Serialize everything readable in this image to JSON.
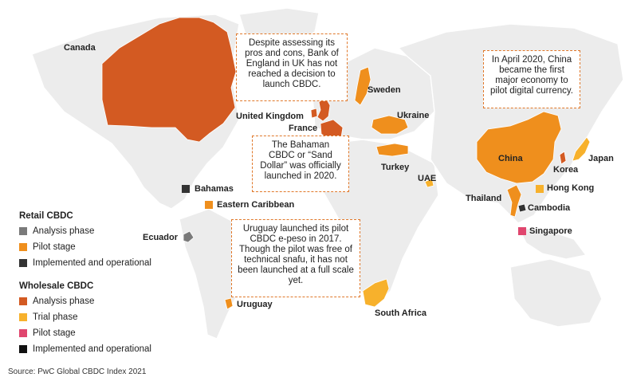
{
  "colors": {
    "retail_analysis": "#7a7a7a",
    "retail_pilot": "#ef8f1d",
    "retail_implemented": "#333333",
    "wholesale_analysis": "#d35a22",
    "wholesale_trial": "#f7b12c",
    "wholesale_pilot": "#e0466e",
    "wholesale_implemented": "#111111"
  },
  "labels": {
    "canada": "Canada",
    "united_kingdom": "United Kingdom",
    "france": "France",
    "sweden": "Sweden",
    "ukraine": "Ukraine",
    "turkey": "Turkey",
    "uae": "UAE",
    "china": "China",
    "korea": "Korea",
    "japan": "Japan",
    "hong_kong": "Hong Kong",
    "thailand": "Thailand",
    "cambodia": "Cambodia",
    "singapore": "Singapore",
    "bahamas": "Bahamas",
    "eastern_caribbean": "Eastern Caribbean",
    "ecuador": "Ecuador",
    "uruguay": "Uruguay",
    "south_africa": "South Africa"
  },
  "callouts": {
    "uk": "Despite assessing its pros and cons, Bank of England in UK has not reached a decision to launch CBDC.",
    "china": "In April 2020, China became the first major economy to pilot digital currency.",
    "bahamas": "The Bahaman CBDC or “Sand Dollar” was officially launched in 2020.",
    "uruguay": "Uruguay launched its pilot CBDC e-peso in 2017. Though the pilot was free of technical snafu, it has not been launched at a full scale yet."
  },
  "legend": {
    "retail_title": "Retail CBDC",
    "retail_items": [
      "Analysis phase",
      "Pilot stage",
      "Implemented and operational"
    ],
    "wholesale_title": "Wholesale CBDC",
    "wholesale_items": [
      "Analysis phase",
      "Trial phase",
      "Pilot stage",
      "Implemented and operational"
    ]
  },
  "source": "Source: PwC Global CBDC Index 2021"
}
